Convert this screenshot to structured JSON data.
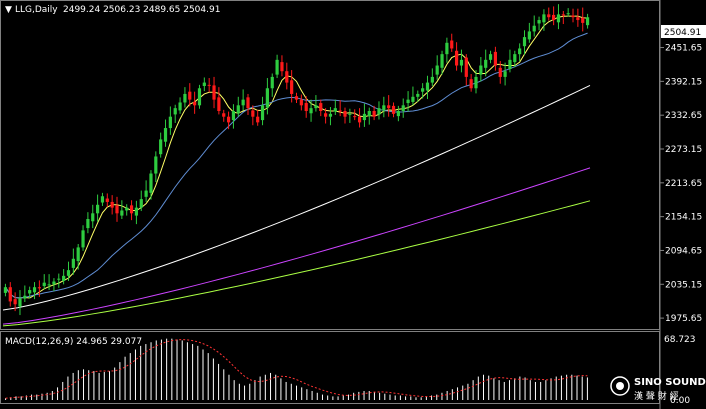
{
  "header": {
    "menu_glyph": "▼",
    "symbol_label": "LLG,Daily",
    "ohlc": "2499.24 2506.23 2489.65 2504.91"
  },
  "price_axis": {
    "current_price": "2504.91",
    "ticks": [
      "2451.65",
      "2392.15",
      "2332.65",
      "2273.15",
      "2213.65",
      "2154.15",
      "2094.65",
      "2035.15",
      "1975.65"
    ]
  },
  "macd": {
    "title": "MACD(12,26,9) 24.965 29.077",
    "max_label": "68.723",
    "bottom_label": "0.00"
  },
  "logo": {
    "brand": "SINO SOUND",
    "chinese": "漢 聲 財 經"
  },
  "colors": {
    "background": "#000000",
    "bull": "#2ecc40",
    "bear": "#ff1a1a",
    "ma_short": "#ffff66",
    "ma_mid": "#5f8dd3",
    "ma_long": "#ffffff",
    "ma_longer": "#cc44ff",
    "ma_longest": "#aaff44",
    "macd_hist": "#ffffff",
    "macd_signal": "#ff3333"
  },
  "chart_data": {
    "type": "candlestick",
    "symbol": "LLG",
    "timeframe": "Daily",
    "ylim": [
      1960,
      2530
    ],
    "last_ohlc": {
      "open": 2499.24,
      "high": 2506.23,
      "low": 2489.65,
      "close": 2504.91
    },
    "closes": [
      2030,
      2005,
      2000,
      2010,
      2015,
      2025,
      2030,
      2028,
      2038,
      2035,
      2040,
      2045,
      2050,
      2060,
      2080,
      2100,
      2130,
      2150,
      2160,
      2175,
      2190,
      2180,
      2170,
      2160,
      2165,
      2170,
      2160,
      2170,
      2185,
      2200,
      2230,
      2260,
      2290,
      2310,
      2330,
      2345,
      2355,
      2370,
      2360,
      2350,
      2380,
      2390,
      2385,
      2360,
      2340,
      2330,
      2320,
      2340,
      2350,
      2360,
      2345,
      2330,
      2320,
      2350,
      2380,
      2400,
      2430,
      2410,
      2390,
      2370,
      2360,
      2350,
      2340,
      2345,
      2350,
      2340,
      2330,
      2335,
      2345,
      2340,
      2330,
      2335,
      2330,
      2320,
      2335,
      2340,
      2330,
      2345,
      2350,
      2345,
      2335,
      2340,
      2350,
      2360,
      2365,
      2370,
      2380,
      2390,
      2400,
      2420,
      2440,
      2460,
      2450,
      2420,
      2430,
      2400,
      2380,
      2400,
      2420,
      2430,
      2440,
      2420,
      2400,
      2410,
      2430,
      2440,
      2450,
      2470,
      2480,
      2490,
      2500,
      2510,
      2505,
      2500,
      2510,
      2508,
      2512,
      2505,
      2500,
      2495,
      2504.91
    ],
    "moving_averages": [
      {
        "name": "MA short",
        "color": "#ffff66",
        "start": 2025,
        "end": 2500
      },
      {
        "name": "MA mid",
        "color": "#5f8dd3",
        "start": 2030,
        "end": 2430
      },
      {
        "name": "MA long",
        "color": "#ffffff",
        "start": 1990,
        "end": 2385
      },
      {
        "name": "MA longer",
        "color": "#cc44ff",
        "start": 1965,
        "end": 2240
      },
      {
        "name": "MA longest",
        "color": "#aaff44",
        "start": 1962,
        "end": 2182
      }
    ],
    "macd_histogram": [
      2,
      3,
      4,
      4,
      5,
      6,
      6,
      7,
      8,
      10,
      14,
      20,
      26,
      30,
      33,
      34,
      33,
      32,
      30,
      31,
      32,
      36,
      42,
      48,
      52,
      56,
      60,
      62,
      64,
      66,
      67,
      68,
      68,
      67,
      66,
      64,
      62,
      60,
      56,
      52,
      46,
      40,
      34,
      28,
      22,
      18,
      16,
      18,
      22,
      26,
      28,
      30,
      28,
      24,
      20,
      18,
      16,
      14,
      12,
      10,
      8,
      6,
      5,
      4,
      4,
      5,
      6,
      8,
      9,
      10,
      10,
      9,
      8,
      7,
      6,
      5,
      5,
      4,
      4,
      3,
      3,
      4,
      5,
      6,
      8,
      10,
      12,
      14,
      16,
      18,
      22,
      26,
      28,
      27,
      24,
      22,
      20,
      22,
      24,
      26,
      25,
      22,
      20,
      20,
      22,
      24,
      26,
      27,
      28,
      28,
      27,
      26,
      25
    ]
  }
}
